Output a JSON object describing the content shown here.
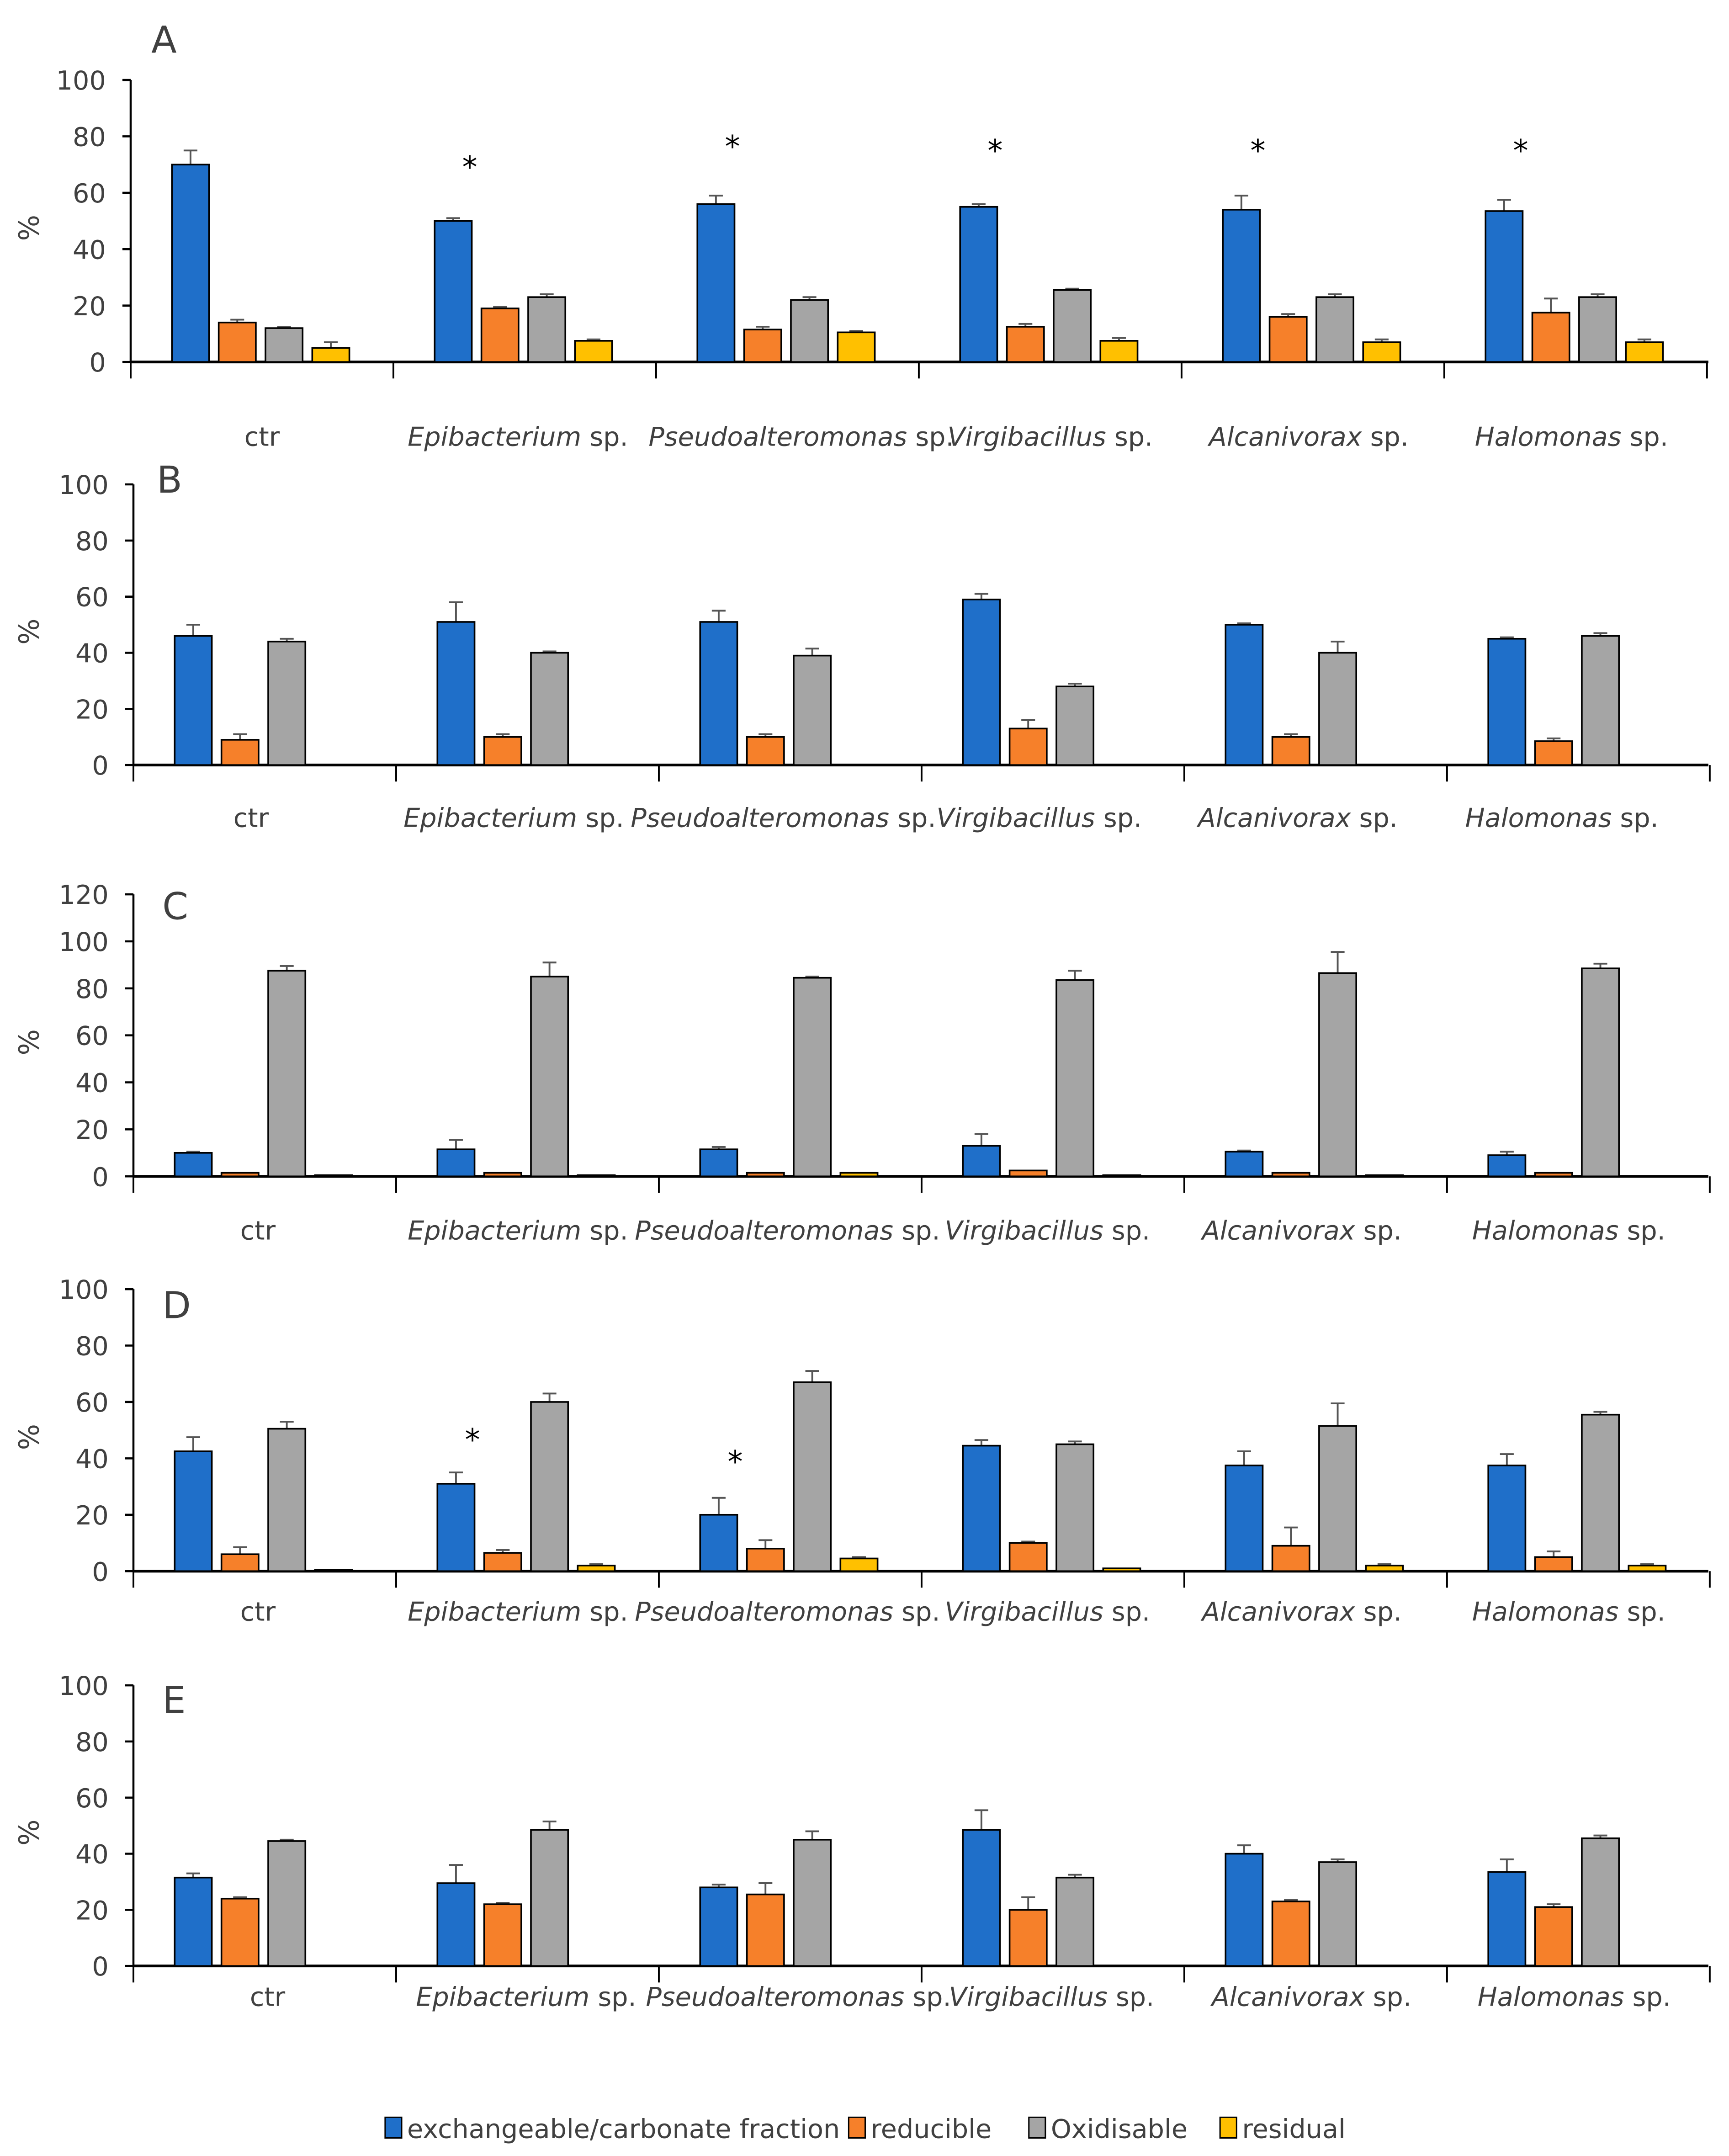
{
  "chart_data": {
    "type": "bar",
    "ylabel": "%",
    "categories": [
      {
        "genus": "ctr",
        "suffix": "",
        "italic": false
      },
      {
        "genus": "Epibacterium",
        "suffix": " sp.",
        "italic": true
      },
      {
        "genus": "Pseudoalteromonas",
        "suffix": " sp.",
        "italic": true
      },
      {
        "genus": "Virgibacillus",
        "suffix": " sp.",
        "italic": true
      },
      {
        "genus": "Alcanivorax",
        "suffix": " sp.",
        "italic": true
      },
      {
        "genus": "Halomonas",
        "suffix": "  sp.",
        "italic": true
      }
    ],
    "series_meta": [
      {
        "key": "exch",
        "name": "exchangeable/carbonate fraction",
        "color": "#1f6fc9"
      },
      {
        "key": "red",
        "name": "reducible",
        "color": "#f6802a"
      },
      {
        "key": "oxi",
        "name": "Oxidisable",
        "color": "#a5a5a5"
      },
      {
        "key": "res",
        "name": "residual",
        "color": "#ffc000"
      }
    ],
    "significance_marker": "*",
    "panels": [
      {
        "label": "A",
        "ylim": [
          0,
          100
        ],
        "ystep": 20,
        "stars": [
          1,
          2,
          3,
          4,
          5
        ],
        "series": {
          "exch": {
            "values": [
              70,
              50,
              56,
              55,
              54,
              53.5
            ],
            "err": [
              5,
              1,
              3,
              1,
              5,
              4
            ]
          },
          "red": {
            "values": [
              14,
              19,
              11.5,
              12.5,
              16,
              17.5
            ],
            "err": [
              1,
              0.5,
              1,
              1,
              1,
              5
            ]
          },
          "oxi": {
            "values": [
              12,
              23,
              22,
              25.5,
              23,
              23
            ],
            "err": [
              0.5,
              1,
              1,
              0.5,
              1,
              1
            ]
          },
          "res": {
            "values": [
              5,
              7.5,
              10.5,
              7.5,
              7,
              7
            ],
            "err": [
              2,
              0.5,
              0.5,
              1,
              1,
              1
            ]
          }
        }
      },
      {
        "label": "B",
        "ylim": [
          0,
          100
        ],
        "ystep": 20,
        "stars": [],
        "series": {
          "exch": {
            "values": [
              46,
              51,
              51,
              59,
              50,
              45
            ],
            "err": [
              4,
              7,
              4,
              2,
              0.5,
              0.5
            ]
          },
          "red": {
            "values": [
              9,
              10,
              10,
              13,
              10,
              8.5
            ],
            "err": [
              2,
              1,
              1,
              3,
              1,
              1
            ]
          },
          "oxi": {
            "values": [
              44,
              40,
              39,
              28,
              40,
              46
            ],
            "err": [
              1,
              0.5,
              2.5,
              1,
              4,
              1
            ]
          },
          "res": {
            "values": [
              null,
              null,
              null,
              null,
              null,
              null
            ],
            "err": [
              0,
              0,
              0,
              0,
              0,
              0
            ]
          }
        }
      },
      {
        "label": "C",
        "ylim": [
          0,
          120
        ],
        "ystep": 20,
        "stars": [],
        "series": {
          "exch": {
            "values": [
              10,
              11.5,
              11.5,
              13,
              10.5,
              9
            ],
            "err": [
              0.5,
              4,
              1,
              5,
              0.5,
              1.5
            ]
          },
          "red": {
            "values": [
              1.5,
              1.5,
              1.5,
              2.5,
              1.5,
              1.5
            ],
            "err": [
              0,
              0,
              0,
              0,
              0,
              0
            ]
          },
          "oxi": {
            "values": [
              87.5,
              85,
              84.5,
              83.5,
              86.5,
              88.5
            ],
            "err": [
              2,
              6,
              0.5,
              4,
              9,
              2
            ]
          },
          "res": {
            "values": [
              0.5,
              0.5,
              1.5,
              0.5,
              0.5,
              null
            ],
            "err": [
              0,
              0,
              0,
              0,
              0,
              0
            ]
          }
        }
      },
      {
        "label": "D",
        "ylim": [
          0,
          100
        ],
        "ystep": 20,
        "stars": [
          1,
          2
        ],
        "series": {
          "exch": {
            "values": [
              42.5,
              31,
              20,
              44.5,
              37.5,
              37.5
            ],
            "err": [
              5,
              4,
              6,
              2,
              5,
              4
            ]
          },
          "red": {
            "values": [
              6,
              6.5,
              8,
              10,
              9,
              5
            ],
            "err": [
              2.5,
              1,
              3,
              0.5,
              6.5,
              2
            ]
          },
          "oxi": {
            "values": [
              50.5,
              60,
              67,
              45,
              51.5,
              55.5
            ],
            "err": [
              2.5,
              3,
              4,
              1,
              8,
              1
            ]
          },
          "res": {
            "values": [
              0.5,
              2,
              4.5,
              1,
              2,
              2
            ],
            "err": [
              0,
              0.5,
              0.5,
              0,
              0.5,
              0.5
            ]
          }
        }
      },
      {
        "label": "E",
        "ylim": [
          0,
          100
        ],
        "ystep": 20,
        "stars": [],
        "series": {
          "exch": {
            "values": [
              31.5,
              29.5,
              28,
              48.5,
              40,
              33.5
            ],
            "err": [
              1.5,
              6.5,
              1,
              7,
              3,
              4.5
            ]
          },
          "red": {
            "values": [
              24,
              22,
              25.5,
              20,
              23,
              21
            ],
            "err": [
              0.5,
              0.5,
              4,
              4.5,
              0.5,
              1
            ]
          },
          "oxi": {
            "values": [
              44.5,
              48.5,
              45,
              31.5,
              37,
              45.5
            ],
            "err": [
              0.5,
              3,
              3,
              1,
              1,
              1
            ]
          },
          "res": {
            "values": [
              null,
              null,
              null,
              null,
              null,
              null
            ],
            "err": [
              0,
              0,
              0,
              0,
              0,
              0
            ]
          }
        }
      }
    ],
    "legend_position": "bottom"
  }
}
